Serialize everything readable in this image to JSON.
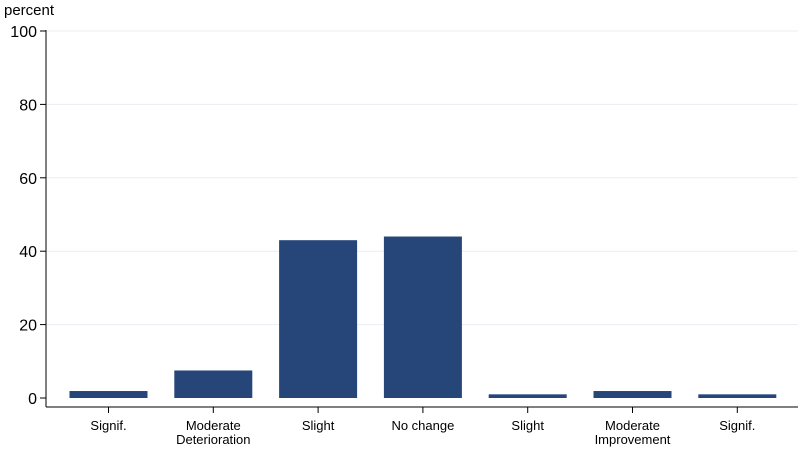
{
  "chart_data": {
    "type": "bar",
    "ylabel": "percent",
    "ylim": [
      0,
      100
    ],
    "yticks": [
      0,
      20,
      40,
      60,
      80,
      100
    ],
    "grid": true,
    "categories": [
      [
        "Signif."
      ],
      [
        "Moderate",
        "Deterioration"
      ],
      [
        "Slight"
      ],
      [
        "No change"
      ],
      [
        "Slight"
      ],
      [
        "Moderate",
        "Improvement"
      ],
      [
        "Signif."
      ]
    ],
    "values": [
      1.9,
      7.5,
      43.0,
      44.0,
      1.0,
      1.9,
      1.0
    ],
    "colors": {
      "bar": "#26467a",
      "grid": "#eaeef2",
      "axis": "#000000"
    }
  }
}
